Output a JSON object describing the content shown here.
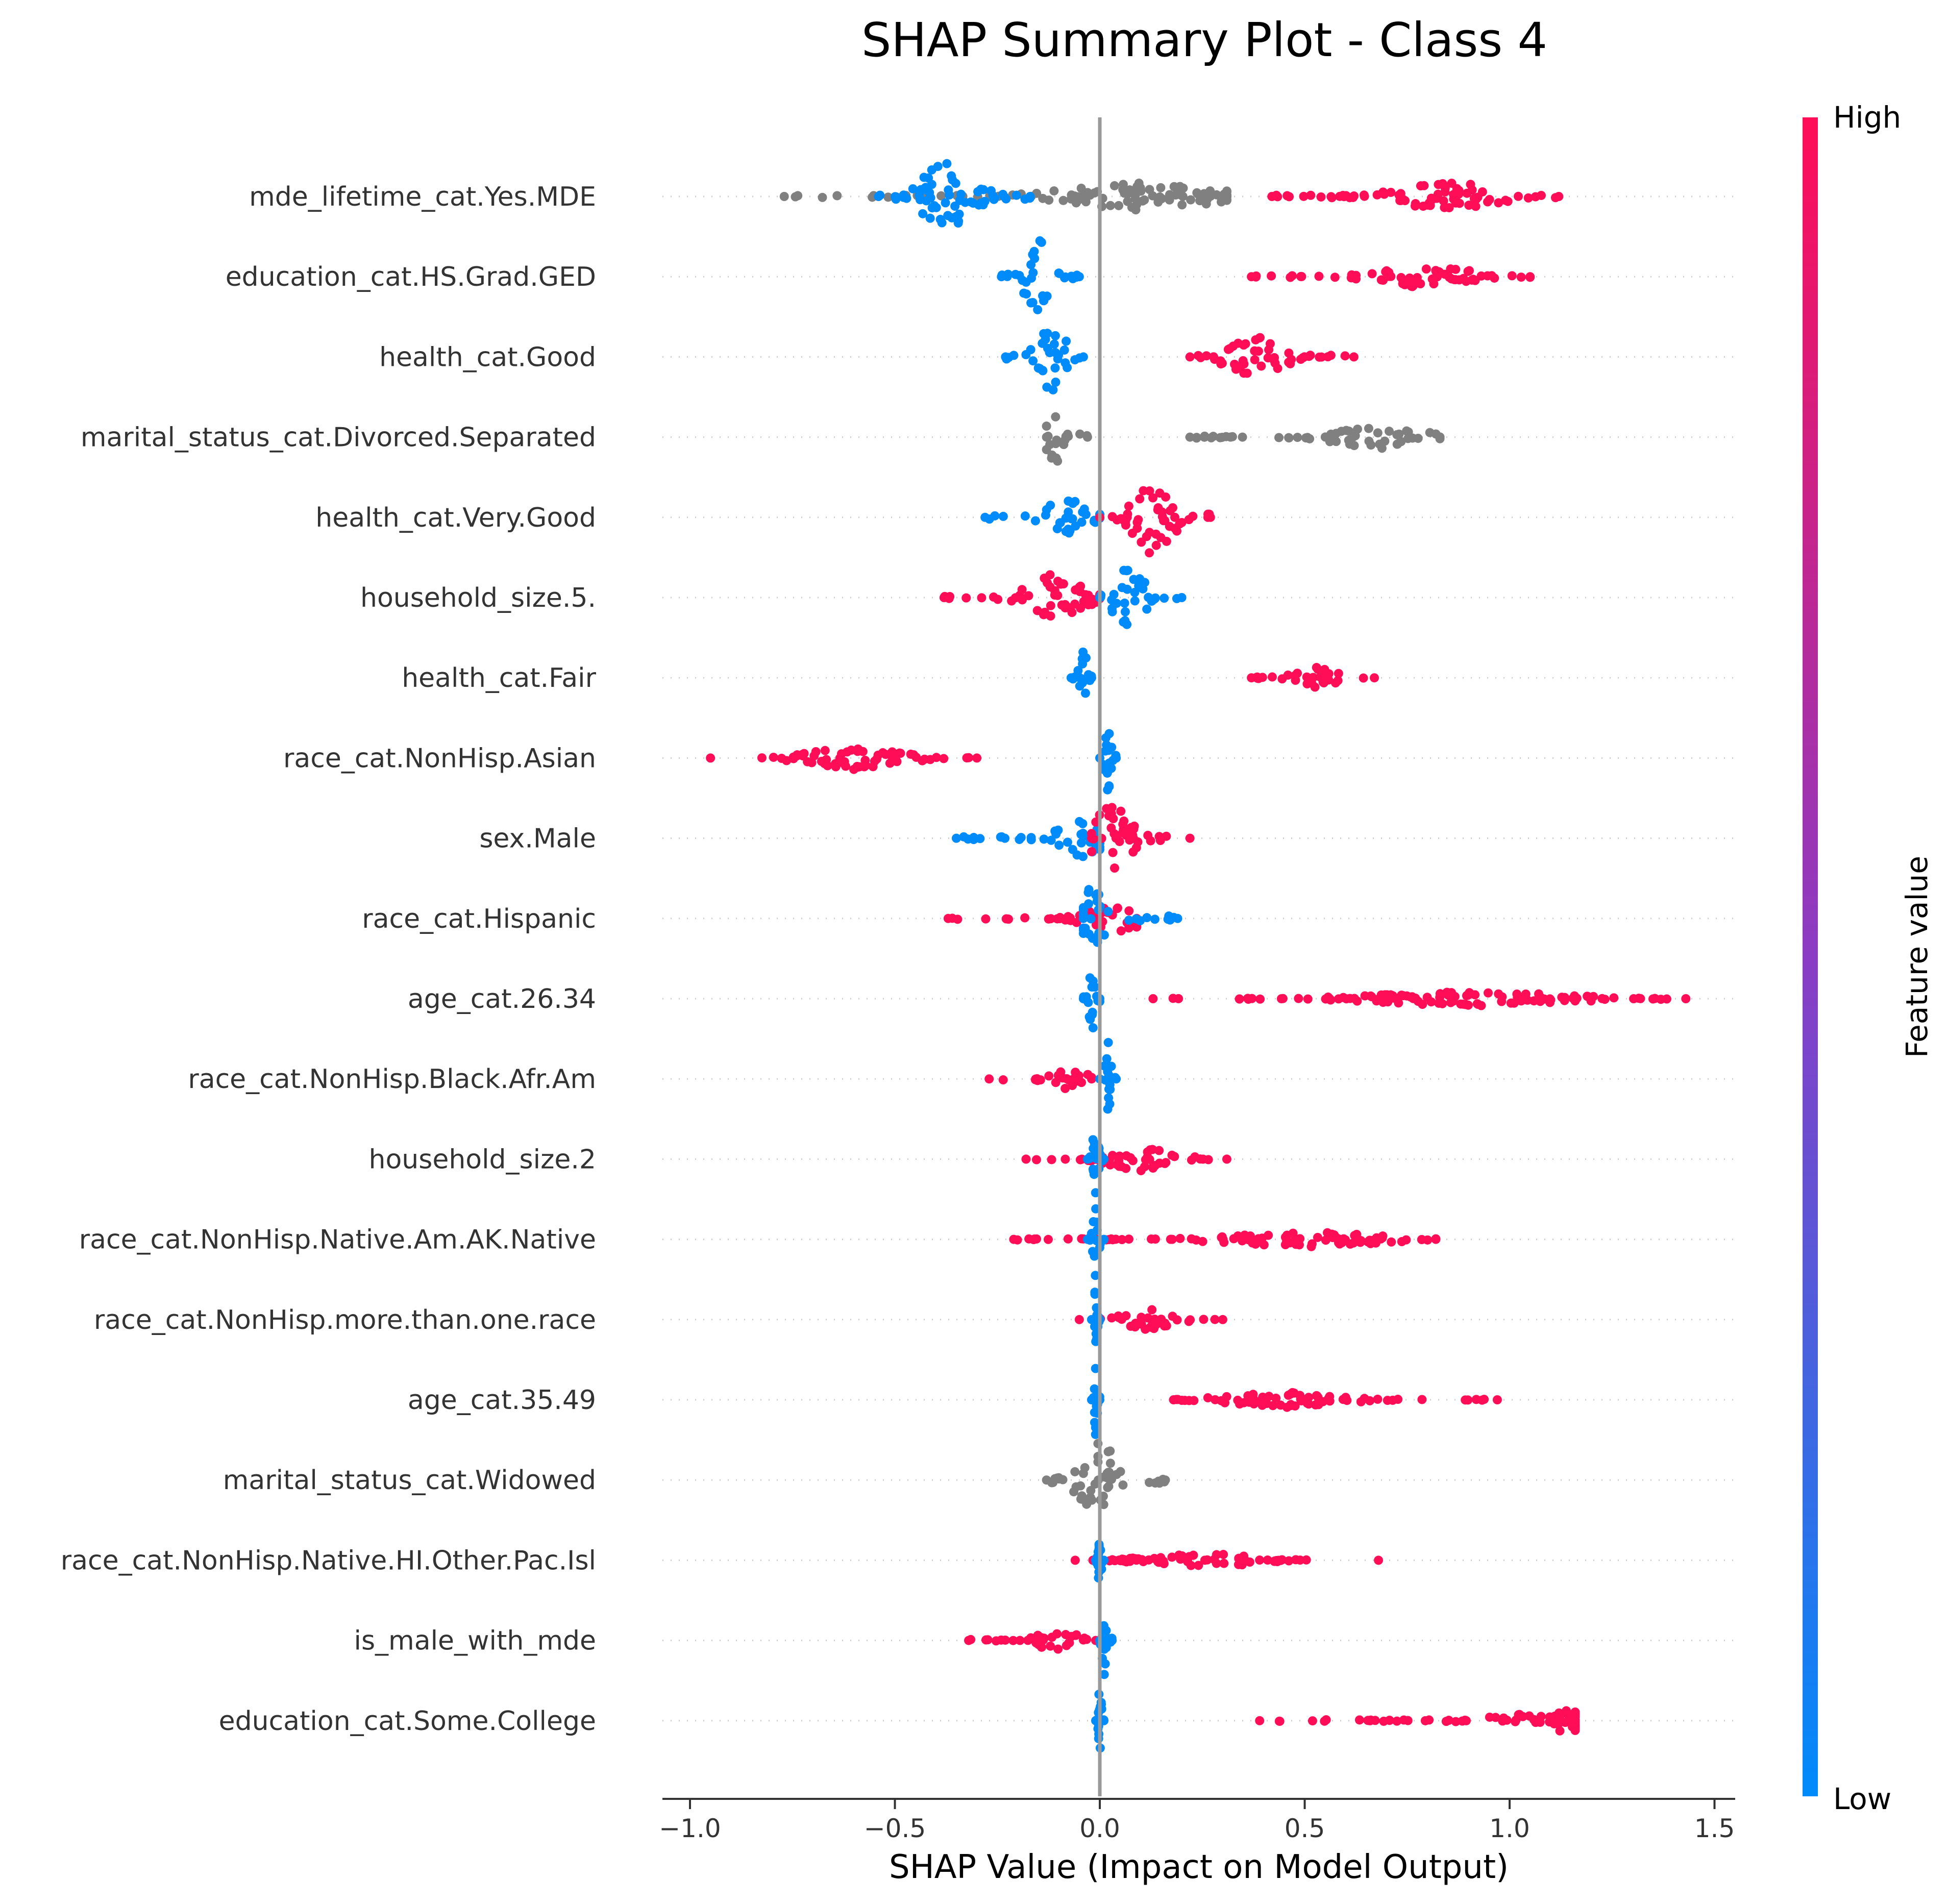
{
  "chart_data": {
    "type": "scatter",
    "title": "SHAP Summary Plot - Class 4",
    "xlabel": "SHAP Value (Impact on Model Output)",
    "xlim": [
      -1.07,
      1.55
    ],
    "xticks": [
      -1.0,
      -0.5,
      0.0,
      0.5,
      1.0,
      1.5
    ],
    "xtick_labels": [
      "−1.0",
      "−0.5",
      "0.0",
      "0.5",
      "1.0",
      "1.5"
    ],
    "colorbar": {
      "label": "Feature value",
      "high": "High",
      "low": "Low"
    },
    "colors": {
      "high": "#ff0d57",
      "low": "#008bfb",
      "missing": "#808080",
      "zero_line": "#999999"
    },
    "features": [
      {
        "name": "mde_lifetime_cat.Yes.MDE",
        "groups": [
          {
            "color": "missing",
            "xmin": -0.77,
            "xmax": 0.31,
            "center": 0.1,
            "spread": 0.35
          },
          {
            "color": "low",
            "xmin": -0.54,
            "xmax": -0.17,
            "center": -0.37,
            "spread": 1.0
          },
          {
            "color": "high",
            "xmin": 0.42,
            "xmax": 1.12,
            "center": 0.85,
            "spread": 0.4
          }
        ]
      },
      {
        "name": "education_cat.HS.Grad.GED",
        "groups": [
          {
            "color": "low",
            "xmin": -0.24,
            "xmax": -0.05,
            "center": -0.15,
            "spread": 1.0
          },
          {
            "color": "high",
            "xmin": 0.37,
            "xmax": 1.05,
            "center": 0.8,
            "spread": 0.3
          }
        ]
      },
      {
        "name": "health_cat.Good",
        "groups": [
          {
            "color": "low",
            "xmin": -0.23,
            "xmax": -0.04,
            "center": -0.12,
            "spread": 1.0
          },
          {
            "color": "high",
            "xmin": 0.22,
            "xmax": 0.62,
            "center": 0.38,
            "spread": 0.55
          }
        ]
      },
      {
        "name": "marital_status_cat.Divorced.Separated",
        "groups": [
          {
            "color": "missing",
            "xmin": -0.13,
            "xmax": -0.03,
            "center": -0.11,
            "spread": 1.0
          },
          {
            "color": "missing",
            "xmin": 0.22,
            "xmax": 0.83,
            "center": 0.68,
            "spread": 0.3
          }
        ]
      },
      {
        "name": "health_cat.Very.Good",
        "groups": [
          {
            "color": "low",
            "xmin": -0.28,
            "xmax": 0.0,
            "center": -0.08,
            "spread": 0.55
          },
          {
            "color": "high",
            "xmin": 0.0,
            "xmax": 0.27,
            "center": 0.13,
            "spread": 1.0
          }
        ]
      },
      {
        "name": "household_size.5.",
        "groups": [
          {
            "color": "high",
            "xmin": -0.38,
            "xmax": 0.0,
            "center": -0.11,
            "spread": 0.65
          },
          {
            "color": "low",
            "xmin": 0.0,
            "xmax": 0.2,
            "center": 0.07,
            "spread": 0.95
          }
        ]
      },
      {
        "name": "health_cat.Fair",
        "groups": [
          {
            "color": "low",
            "xmin": -0.07,
            "xmax": -0.02,
            "center": -0.04,
            "spread": 1.0
          },
          {
            "color": "high",
            "xmin": 0.37,
            "xmax": 0.67,
            "center": 0.52,
            "spread": 0.3
          }
        ]
      },
      {
        "name": "race_cat.NonHisp.Asian",
        "groups": [
          {
            "color": "high",
            "xmin": -0.95,
            "xmax": -0.3,
            "center": -0.6,
            "spread": 0.3
          },
          {
            "color": "low",
            "xmin": 0.0,
            "xmax": 0.04,
            "center": 0.02,
            "spread": 1.0
          }
        ]
      },
      {
        "name": "sex.Male",
        "groups": [
          {
            "color": "low",
            "xmin": -0.35,
            "xmax": 0.0,
            "center": -0.05,
            "spread": 0.5
          },
          {
            "color": "high",
            "xmin": -0.02,
            "xmax": 0.22,
            "center": 0.03,
            "spread": 1.0
          }
        ]
      },
      {
        "name": "race_cat.Hispanic",
        "groups": [
          {
            "color": "high",
            "xmin": -0.37,
            "xmax": 0.09,
            "center": 0.05,
            "spread": 0.35
          },
          {
            "color": "low",
            "xmin": -0.04,
            "xmax": 0.19,
            "center": -0.02,
            "spread": 0.8
          }
        ]
      },
      {
        "name": "age_cat.26.34",
        "groups": [
          {
            "color": "low",
            "xmin": -0.04,
            "xmax": 0.0,
            "center": -0.02,
            "spread": 1.0
          },
          {
            "color": "high",
            "xmin": 0.13,
            "xmax": 1.43,
            "center": 0.9,
            "spread": 0.2
          }
        ]
      },
      {
        "name": "race_cat.NonHisp.Black.Afr.Am",
        "groups": [
          {
            "color": "high",
            "xmin": -0.27,
            "xmax": -0.02,
            "center": -0.08,
            "spread": 0.3
          },
          {
            "color": "low",
            "xmin": 0.0,
            "xmax": 0.04,
            "center": 0.02,
            "spread": 1.0
          }
        ]
      },
      {
        "name": "household_size.2",
        "groups": [
          {
            "color": "high",
            "xmin": -0.18,
            "xmax": 0.31,
            "center": 0.1,
            "spread": 0.3
          },
          {
            "color": "low",
            "xmin": -0.03,
            "xmax": 0.01,
            "center": -0.01,
            "spread": 1.0
          }
        ]
      },
      {
        "name": "race_cat.NonHisp.Native.Am.AK.Native",
        "groups": [
          {
            "color": "high",
            "xmin": -0.21,
            "xmax": 0.82,
            "center": 0.5,
            "spread": 0.2
          },
          {
            "color": "low",
            "xmin": -0.03,
            "xmax": 0.01,
            "center": -0.01,
            "spread": 1.0
          }
        ]
      },
      {
        "name": "race_cat.NonHisp.more.than.one.race",
        "groups": [
          {
            "color": "high",
            "xmin": -0.05,
            "xmax": 0.3,
            "center": 0.12,
            "spread": 0.3
          },
          {
            "color": "low",
            "xmin": -0.02,
            "xmax": 0.0,
            "center": -0.01,
            "spread": 1.0
          }
        ]
      },
      {
        "name": "age_cat.35.49",
        "groups": [
          {
            "color": "low",
            "xmin": -0.02,
            "xmax": 0.0,
            "center": -0.01,
            "spread": 1.0
          },
          {
            "color": "high",
            "xmin": 0.18,
            "xmax": 0.97,
            "center": 0.45,
            "spread": 0.2
          }
        ]
      },
      {
        "name": "marital_status_cat.Widowed",
        "groups": [
          {
            "color": "missing",
            "xmin": -0.13,
            "xmax": 0.16,
            "center": 0.0,
            "spread": 1.0
          }
        ]
      },
      {
        "name": "race_cat.NonHisp.Native.HI.Other.Pac.Isl",
        "groups": [
          {
            "color": "high",
            "xmin": -0.06,
            "xmax": 0.68,
            "center": 0.25,
            "spread": 0.2
          },
          {
            "color": "low",
            "xmin": -0.01,
            "xmax": 0.01,
            "center": 0.0,
            "spread": 1.0
          }
        ]
      },
      {
        "name": "is_male_with_mde",
        "groups": [
          {
            "color": "high",
            "xmin": -0.32,
            "xmax": -0.01,
            "center": -0.1,
            "spread": 0.3
          },
          {
            "color": "low",
            "xmin": 0.0,
            "xmax": 0.03,
            "center": 0.01,
            "spread": 1.0
          }
        ]
      },
      {
        "name": "education_cat.Some.College",
        "groups": [
          {
            "color": "low",
            "xmin": -0.01,
            "xmax": 0.01,
            "center": 0.0,
            "spread": 1.0
          },
          {
            "color": "high",
            "xmin": 0.39,
            "xmax": 1.16,
            "center": 1.13,
            "spread": 0.3
          }
        ]
      }
    ]
  }
}
